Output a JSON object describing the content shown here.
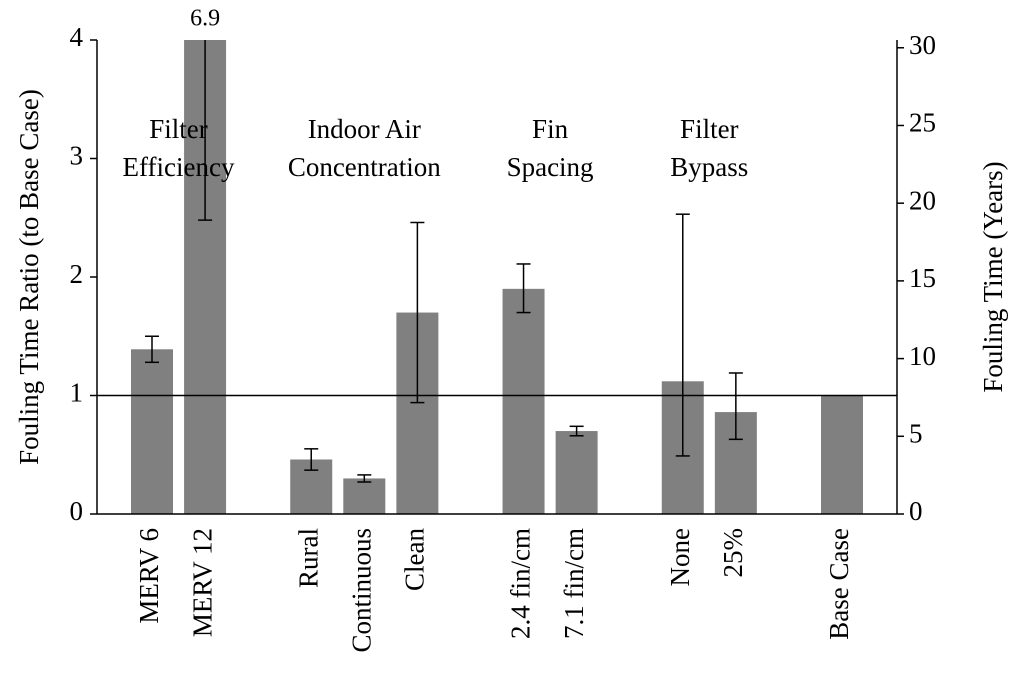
{
  "chart_data": {
    "type": "bar",
    "ylabel": "Fouling Time Ratio (to Base Case)",
    "y2label": "Fouling Time (Years)",
    "categories": [
      "MERV 6",
      "MERV 12",
      null,
      "Rural",
      "Continuous",
      "Clean",
      null,
      "2.4 fin/cm",
      "7.1 fin/cm",
      null,
      "None",
      "25%",
      null,
      "Base Case"
    ],
    "values": [
      1.39,
      6.9,
      null,
      0.46,
      0.3,
      1.7,
      null,
      1.9,
      0.7,
      null,
      1.12,
      0.86,
      null,
      1.0
    ],
    "value_labels": [
      null,
      "6.9",
      null,
      null,
      null,
      null,
      null,
      null,
      null,
      null,
      null,
      null,
      null,
      null
    ],
    "errors_minus": [
      0.11,
      4.42,
      null,
      0.09,
      0.03,
      0.76,
      null,
      0.2,
      0.04,
      null,
      0.63,
      0.23,
      null,
      null
    ],
    "errors_plus": [
      0.11,
      4.42,
      null,
      0.09,
      0.03,
      0.76,
      null,
      0.21,
      0.04,
      null,
      1.41,
      0.33,
      null,
      null
    ],
    "color": "#808080",
    "reference_line": 1,
    "annotations": [
      [
        "Filter",
        "Efficiency"
      ],
      [
        "Indoor Air",
        "Concentration"
      ],
      [
        "Fin",
        "Spacing"
      ],
      [
        "Filter",
        "Bypass"
      ]
    ],
    "ylim": [
      0,
      4
    ],
    "yticks": [
      0,
      1,
      2,
      3,
      4
    ],
    "y2lim": [
      0,
      30.5
    ],
    "y2ticks": [
      0,
      5,
      10,
      15,
      20,
      25,
      30
    ]
  }
}
